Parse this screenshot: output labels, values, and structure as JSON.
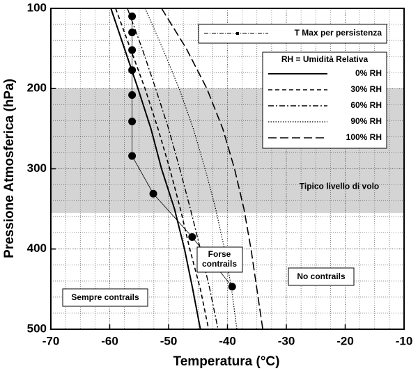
{
  "chart_data": {
    "type": "line",
    "x_label": "Temperatura (°C)",
    "y_label": "Pressione Atmosferica (hPa)",
    "xlim": [
      -70,
      -10
    ],
    "ylim": [
      500,
      100
    ],
    "xticks": [
      -70,
      -60,
      -50,
      -40,
      -30,
      -20,
      -10
    ],
    "yticks": [
      100,
      200,
      300,
      400,
      500
    ],
    "x_minor_ticks": [
      -67.5,
      -65,
      -62.5,
      -57.5,
      -55,
      -52.5,
      -47.5,
      -45,
      -42.5,
      -37.5,
      -35,
      -32.5,
      -27.5,
      -25,
      -22.5,
      -17.5,
      -15,
      -12.5
    ],
    "y_minor_ticks": [
      120,
      140,
      160,
      180,
      220,
      240,
      260,
      280,
      320,
      340,
      360,
      380,
      420,
      440,
      460,
      480
    ],
    "grid": true,
    "shaded_band": {
      "range": [
        200,
        355
      ],
      "label": "Tipico livello di volo",
      "color": "#d4d4d4"
    },
    "legend_title": "RH = Umidità Relativa",
    "pressure": [
      100,
      150,
      200,
      250,
      300,
      350,
      400,
      450,
      500
    ],
    "series": [
      {
        "name": "0% RH",
        "color": "#000000",
        "dash": "none",
        "width": 2,
        "values": [
          -59.8,
          -57.5,
          -55.2,
          -53.0,
          -51.2,
          -49.0,
          -47.3,
          -45.9,
          -44.6
        ]
      },
      {
        "name": "30% RH",
        "color": "#000000",
        "dash": "6,4",
        "width": 1.6,
        "values": [
          -59.0,
          -56.5,
          -54.0,
          -51.8,
          -49.8,
          -48.0,
          -46.4,
          -44.6,
          -43.2
        ]
      },
      {
        "name": "60% RH",
        "color": "#000000",
        "dash": "8,3,2,3",
        "width": 1.4,
        "values": [
          -57.0,
          -54.5,
          -52.2,
          -50.0,
          -48.1,
          -46.3,
          -44.6,
          -43.0,
          -41.6
        ]
      },
      {
        "name": "90% RH",
        "color": "#000000",
        "dash": "1.5,2",
        "width": 1.2,
        "values": [
          -54.0,
          -51.0,
          -48.2,
          -45.8,
          -43.8,
          -42.0,
          -40.5,
          -39.3,
          -38.4
        ]
      },
      {
        "name": "100% RH",
        "color": "#000000",
        "dash": "12,5",
        "width": 1.6,
        "values": [
          -51.2,
          -47.0,
          -43.5,
          -40.8,
          -38.8,
          -37.2,
          -36.0,
          -35.0,
          -34.0
        ]
      }
    ],
    "persistence": {
      "name": "T Max per persistenza",
      "temperature": [
        -56.2,
        -56.2,
        -56.2,
        -56.2,
        -56.2,
        -56.2,
        -56.2,
        -52.6,
        -46.0,
        -39.2
      ],
      "pressure": [
        110,
        130,
        152,
        177,
        208,
        241,
        284,
        331,
        385,
        447
      ]
    },
    "annotations": [
      "Forse contrails",
      "No contrails",
      "Sempre contrails"
    ]
  }
}
